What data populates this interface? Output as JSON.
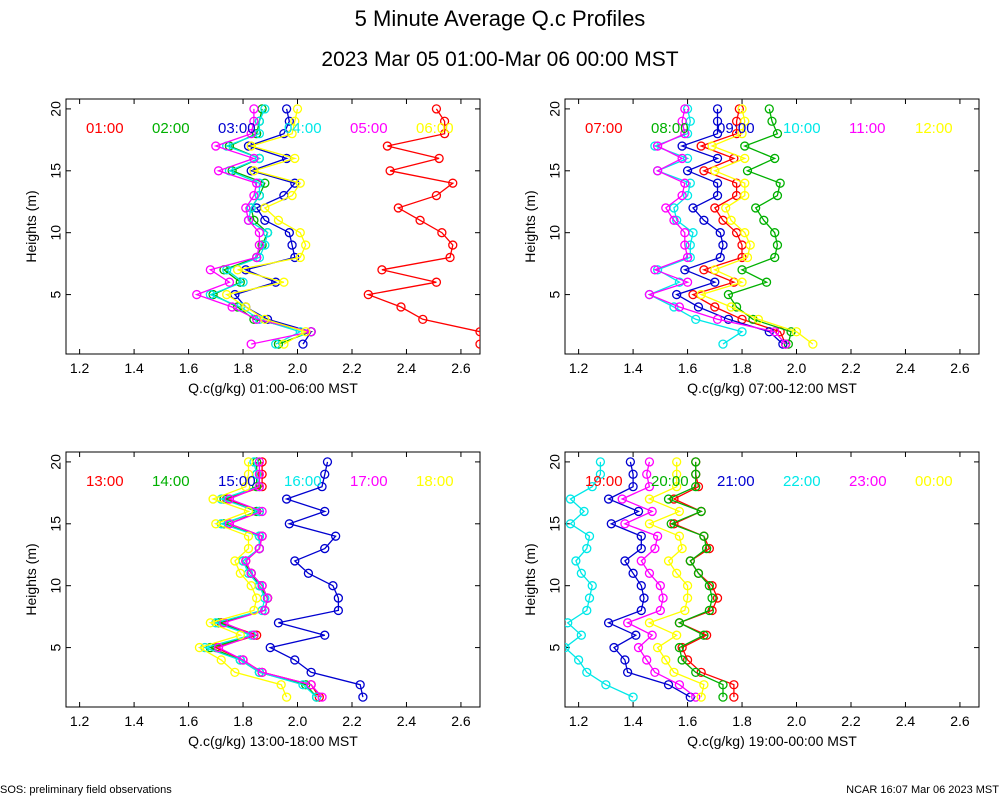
{
  "title": "5 Minute Average Q.c Profiles",
  "subtitle": "2023 Mar 05 01:00-Mar 06 00:00 MST",
  "footer_left": "SOS: preliminary field observations",
  "footer_right": "NCAR 16:07 Mar 06 2023 MST",
  "colors": [
    "#ff0000",
    "#00b000",
    "#0000d0",
    "#00e8e8",
    "#ff00ff",
    "#ffff00"
  ],
  "chart_data": [
    {
      "type": "line",
      "xlabel": "Q.c(g/kg) 01:00-06:00 MST",
      "ylabel": "Heights (m)",
      "xlim": [
        1.15,
        2.67
      ],
      "ylim": [
        0.2,
        20.8
      ],
      "xticks": [
        "1.2",
        "1.4",
        "1.6",
        "1.8",
        "2.0",
        "2.2",
        "2.4",
        "2.6"
      ],
      "yticks": [
        "5",
        "10",
        "15",
        "20"
      ],
      "heights": [
        1,
        2,
        3,
        4,
        5,
        6,
        7,
        8,
        9,
        10,
        11,
        12,
        13,
        14,
        15,
        16,
        17,
        18,
        19,
        20
      ],
      "series": [
        {
          "name": "01:00",
          "values": [
            2.67,
            2.67,
            2.46,
            2.38,
            2.26,
            2.51,
            2.31,
            2.56,
            2.57,
            2.53,
            2.45,
            2.37,
            2.51,
            2.57,
            2.34,
            2.52,
            2.33,
            2.54,
            2.54,
            2.51
          ]
        },
        {
          "name": "02:00",
          "values": [
            1.93,
            2.05,
            1.84,
            1.78,
            1.69,
            1.79,
            1.73,
            1.85,
            1.87,
            1.89,
            1.84,
            1.83,
            1.86,
            1.88,
            1.76,
            1.86,
            1.75,
            1.85,
            1.86,
            1.87
          ]
        },
        {
          "name": "03:00",
          "values": [
            2.02,
            2.05,
            1.89,
            1.81,
            1.77,
            1.92,
            1.81,
            1.99,
            1.98,
            1.97,
            1.88,
            1.85,
            1.95,
            1.99,
            1.83,
            1.96,
            1.82,
            1.95,
            1.97,
            1.96
          ]
        },
        {
          "name": "04:00",
          "values": [
            1.92,
            2.01,
            1.86,
            1.79,
            1.68,
            1.8,
            1.74,
            1.86,
            1.88,
            1.89,
            1.82,
            1.83,
            1.86,
            1.86,
            1.75,
            1.86,
            1.74,
            1.86,
            1.86,
            1.88
          ]
        },
        {
          "name": "05:00",
          "values": [
            1.83,
            2.05,
            1.85,
            1.76,
            1.63,
            1.75,
            1.68,
            1.85,
            1.86,
            1.86,
            1.82,
            1.81,
            1.84,
            1.85,
            1.71,
            1.84,
            1.7,
            1.83,
            1.84,
            1.84
          ]
        },
        {
          "name": "06:00",
          "values": [
            1.95,
            2.03,
            1.88,
            1.81,
            1.74,
            1.95,
            1.78,
            2.01,
            2.03,
            2.01,
            1.93,
            1.88,
            1.98,
            2.01,
            1.84,
            1.99,
            1.83,
            1.98,
            1.99,
            2.0
          ]
        }
      ]
    },
    {
      "type": "line",
      "xlabel": "Q.c(g/kg) 07:00-12:00 MST",
      "ylabel": "Heights (m)",
      "xlim": [
        1.15,
        2.67
      ],
      "ylim": [
        0.2,
        20.8
      ],
      "xticks": [
        "1.2",
        "1.4",
        "1.6",
        "1.8",
        "2.0",
        "2.2",
        "2.4",
        "2.6"
      ],
      "yticks": [
        "5",
        "10",
        "15",
        "20"
      ],
      "heights": [
        1,
        2,
        3,
        4,
        5,
        6,
        7,
        8,
        9,
        10,
        11,
        12,
        13,
        14,
        15,
        16,
        17,
        18,
        19,
        20
      ],
      "series": [
        {
          "name": "07:00",
          "values": [
            1.96,
            1.94,
            1.8,
            1.7,
            1.62,
            1.77,
            1.66,
            1.8,
            1.8,
            1.78,
            1.73,
            1.7,
            1.78,
            1.78,
            1.66,
            1.77,
            1.65,
            1.78,
            1.78,
            1.79
          ]
        },
        {
          "name": "08:00",
          "values": [
            1.97,
            1.98,
            1.84,
            1.78,
            1.75,
            1.89,
            1.8,
            1.92,
            1.93,
            1.92,
            1.88,
            1.85,
            1.93,
            1.94,
            1.82,
            1.92,
            1.81,
            1.93,
            1.91,
            1.9
          ]
        },
        {
          "name": "09:00",
          "values": [
            1.95,
            1.9,
            1.75,
            1.64,
            1.56,
            1.7,
            1.59,
            1.72,
            1.73,
            1.72,
            1.66,
            1.62,
            1.71,
            1.71,
            1.6,
            1.71,
            1.58,
            1.71,
            1.71,
            1.71
          ]
        },
        {
          "name": "10:00",
          "values": [
            1.73,
            1.8,
            1.63,
            1.55,
            1.46,
            1.57,
            1.49,
            1.61,
            1.61,
            1.62,
            1.56,
            1.55,
            1.6,
            1.61,
            1.49,
            1.6,
            1.48,
            1.6,
            1.61,
            1.6
          ]
        },
        {
          "name": "11:00",
          "values": [
            1.96,
            1.92,
            1.71,
            1.57,
            1.46,
            1.6,
            1.48,
            1.6,
            1.59,
            1.59,
            1.55,
            1.52,
            1.58,
            1.59,
            1.49,
            1.58,
            1.49,
            1.59,
            1.58,
            1.59
          ]
        },
        {
          "name": "12:00",
          "values": [
            2.06,
            2.0,
            1.86,
            1.76,
            1.65,
            1.8,
            1.7,
            1.82,
            1.83,
            1.81,
            1.76,
            1.74,
            1.81,
            1.81,
            1.7,
            1.81,
            1.69,
            1.8,
            1.81,
            1.8
          ]
        }
      ]
    },
    {
      "type": "line",
      "xlabel": "Q.c(g/kg) 13:00-18:00 MST",
      "ylabel": "Heights (m)",
      "xlim": [
        1.15,
        2.67
      ],
      "ylim": [
        0.2,
        20.8
      ],
      "xticks": [
        "1.2",
        "1.4",
        "1.6",
        "1.8",
        "2.0",
        "2.2",
        "2.4",
        "2.6"
      ],
      "yticks": [
        "5",
        "10",
        "15",
        "20"
      ],
      "heights": [
        1,
        2,
        3,
        4,
        5,
        6,
        7,
        8,
        9,
        10,
        11,
        12,
        13,
        14,
        15,
        16,
        17,
        18,
        19,
        20
      ],
      "series": [
        {
          "name": "13:00",
          "values": [
            2.08,
            2.05,
            1.87,
            1.8,
            1.7,
            1.85,
            1.72,
            1.88,
            1.89,
            1.87,
            1.83,
            1.81,
            1.86,
            1.87,
            1.75,
            1.86,
            1.74,
            1.87,
            1.87,
            1.87
          ]
        },
        {
          "name": "14:00",
          "values": [
            2.07,
            2.03,
            1.86,
            1.79,
            1.68,
            1.84,
            1.71,
            1.88,
            1.89,
            1.86,
            1.83,
            1.8,
            1.86,
            1.86,
            1.73,
            1.85,
            1.73,
            1.85,
            1.85,
            1.85
          ]
        },
        {
          "name": "15:00",
          "values": [
            2.24,
            2.23,
            2.05,
            1.99,
            1.9,
            2.1,
            1.93,
            2.15,
            2.15,
            2.13,
            2.04,
            1.99,
            2.1,
            2.14,
            1.97,
            2.1,
            1.96,
            2.09,
            2.1,
            2.11
          ]
        },
        {
          "name": "16:00",
          "values": [
            2.07,
            2.02,
            1.86,
            1.79,
            1.66,
            1.83,
            1.7,
            1.87,
            1.88,
            1.86,
            1.82,
            1.8,
            1.86,
            1.86,
            1.72,
            1.86,
            1.72,
            1.86,
            1.85,
            1.84
          ]
        },
        {
          "name": "17:00",
          "values": [
            2.09,
            2.05,
            1.87,
            1.8,
            1.71,
            1.84,
            1.73,
            1.88,
            1.89,
            1.87,
            1.83,
            1.81,
            1.86,
            1.87,
            1.75,
            1.87,
            1.75,
            1.86,
            1.86,
            1.86
          ]
        },
        {
          "name": "18:00",
          "values": [
            1.96,
            1.94,
            1.77,
            1.72,
            1.64,
            1.79,
            1.68,
            1.84,
            1.85,
            1.83,
            1.79,
            1.77,
            1.82,
            1.82,
            1.7,
            1.82,
            1.69,
            1.81,
            1.82,
            1.82
          ]
        }
      ]
    },
    {
      "type": "line",
      "xlabel": "Q.c(g/kg) 19:00-00:00 MST",
      "ylabel": "Heights (m)",
      "xlim": [
        1.15,
        2.67
      ],
      "ylim": [
        0.2,
        20.8
      ],
      "xticks": [
        "1.2",
        "1.4",
        "1.6",
        "1.8",
        "2.0",
        "2.2",
        "2.4",
        "2.6"
      ],
      "yticks": [
        "5",
        "10",
        "15",
        "20"
      ],
      "heights": [
        1,
        2,
        3,
        4,
        5,
        6,
        7,
        8,
        9,
        10,
        11,
        12,
        13,
        14,
        15,
        16,
        17,
        18,
        19,
        20
      ],
      "series": [
        {
          "name": "19:00",
          "values": [
            1.77,
            1.77,
            1.65,
            1.6,
            1.58,
            1.67,
            1.57,
            1.69,
            1.71,
            1.69,
            1.64,
            1.61,
            1.68,
            1.66,
            1.55,
            1.65,
            1.55,
            1.64,
            1.63,
            1.63
          ]
        },
        {
          "name": "20:00",
          "values": [
            1.73,
            1.73,
            1.63,
            1.58,
            1.57,
            1.66,
            1.57,
            1.68,
            1.69,
            1.68,
            1.64,
            1.61,
            1.67,
            1.66,
            1.54,
            1.65,
            1.53,
            1.63,
            1.63,
            1.63
          ]
        },
        {
          "name": "21:00",
          "values": [
            1.61,
            1.53,
            1.38,
            1.37,
            1.33,
            1.41,
            1.31,
            1.43,
            1.44,
            1.43,
            1.4,
            1.37,
            1.43,
            1.43,
            1.32,
            1.42,
            1.31,
            1.4,
            1.4,
            1.39
          ]
        },
        {
          "name": "22:00",
          "values": [
            1.4,
            1.3,
            1.23,
            1.2,
            1.15,
            1.21,
            1.16,
            1.23,
            1.24,
            1.25,
            1.21,
            1.19,
            1.23,
            1.24,
            1.17,
            1.22,
            1.17,
            1.25,
            1.28,
            1.28
          ]
        },
        {
          "name": "23:00",
          "values": [
            1.63,
            1.57,
            1.48,
            1.45,
            1.42,
            1.47,
            1.38,
            1.5,
            1.51,
            1.5,
            1.46,
            1.43,
            1.48,
            1.49,
            1.37,
            1.47,
            1.36,
            1.46,
            1.45,
            1.46
          ]
        },
        {
          "name": "00:00",
          "values": [
            1.65,
            1.66,
            1.55,
            1.52,
            1.49,
            1.56,
            1.46,
            1.59,
            1.6,
            1.6,
            1.56,
            1.53,
            1.58,
            1.57,
            1.46,
            1.57,
            1.46,
            1.56,
            1.56,
            1.56
          ]
        }
      ]
    }
  ]
}
